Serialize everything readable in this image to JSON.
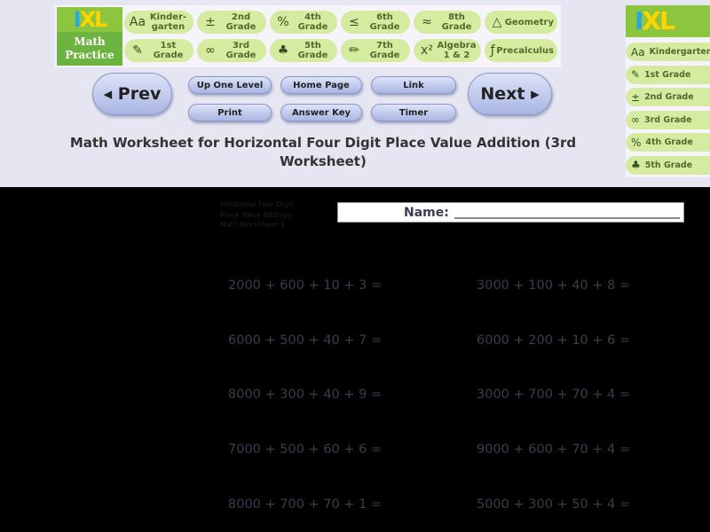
{
  "logo": {
    "brand": "IXL",
    "subtitle": "Math Practice"
  },
  "grades": [
    {
      "icon": "Aa",
      "label": "Kinder-garten"
    },
    {
      "icon": "±",
      "label": "2nd Grade"
    },
    {
      "icon": "%",
      "label": "4th Grade"
    },
    {
      "icon": "≤",
      "label": "6th Grade"
    },
    {
      "icon": "≈",
      "label": "8th Grade"
    },
    {
      "icon": "△",
      "label": "Geometry"
    },
    {
      "icon": "✎",
      "label": "1st Grade"
    },
    {
      "icon": "∞",
      "label": "3rd Grade"
    },
    {
      "icon": "♣",
      "label": "5th Grade"
    },
    {
      "icon": "✏",
      "label": "7th Grade"
    },
    {
      "icon": "x²",
      "label": "Algebra 1 & 2"
    },
    {
      "icon": "ƒ",
      "label": "Precalculus"
    }
  ],
  "nav": {
    "prev": "◂ Prev",
    "next": "Next ▸",
    "up": "Up One Level",
    "home": "Home Page",
    "link": "Link",
    "print": "Print",
    "answer_key": "Answer Key",
    "timer": "Timer"
  },
  "title": "Math Worksheet for Horizontal Four Digit Place Value Addition (3rd Worksheet)",
  "sidebar": [
    {
      "icon": "Aa",
      "label": "Kindergarten"
    },
    {
      "icon": "✎",
      "label": "1st Grade"
    },
    {
      "icon": "±",
      "label": "2nd Grade"
    },
    {
      "icon": "∞",
      "label": "3rd Grade"
    },
    {
      "icon": "%",
      "label": "4th Grade"
    },
    {
      "icon": "♣",
      "label": "5th Grade"
    }
  ],
  "worksheet": {
    "info": [
      "Horizontal Four Digit",
      "Place Value Addition",
      "Math Worksheet 3"
    ],
    "name_label": "Name:",
    "problems": [
      "2000 + 600 + 10 + 3 =",
      "3000 + 100 + 40 + 8 =",
      "6000 + 500 + 40 + 7 =",
      "6000 + 200 + 10 + 6 =",
      "8000 + 300 + 40 + 9 =",
      "3000 + 700 + 70 + 4 =",
      "7000 + 500 + 60 + 6 =",
      "9000 + 600 + 70 + 4 =",
      "8000 + 700 + 70 + 1 =",
      "5000 + 300 + 50 + 4 ="
    ]
  }
}
